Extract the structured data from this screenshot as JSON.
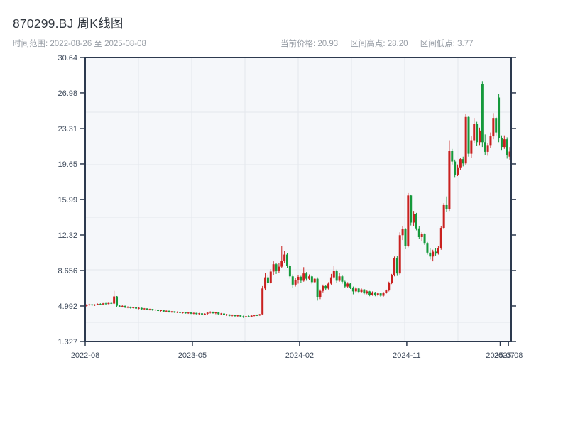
{
  "header": {
    "title": "870299.BJ 周K线图",
    "date_range_text": "时间范围: 2022-08-26 至 2025-08-08",
    "stats": [
      "当前价格: 20.93",
      "区间高点: 28.20",
      "区间低点: 3.77"
    ]
  },
  "chart_data": {
    "type": "candlestick",
    "title": "870299.BJ 周K线图",
    "interval": "weekly",
    "date_range": {
      "start": "2022-08-26",
      "end": "2025-08-08"
    },
    "current_price": 20.93,
    "period_high": 28.2,
    "period_low": 3.77,
    "up_color": "#c9211f",
    "down_color": "#15993b",
    "plot_bg": "#f5f7fa",
    "grid_color": "#e4e7ec",
    "border_color": "#2d3a4f",
    "y_axis": {
      "min": 1.327,
      "max": 30.64,
      "ticks": [
        {
          "label": "30.64",
          "value": 30.64
        },
        {
          "label": "26.98",
          "value": 26.98
        },
        {
          "label": "23.31",
          "value": 23.31
        },
        {
          "label": "19.65",
          "value": 19.65
        },
        {
          "label": "15.99",
          "value": 15.99
        },
        {
          "label": "12.32",
          "value": 12.32
        },
        {
          "label": "8.656",
          "value": 8.656
        },
        {
          "label": "4.992",
          "value": 4.992
        },
        {
          "label": "1.327",
          "value": 1.327
        }
      ]
    },
    "x_axis": {
      "tick_labels": [
        {
          "label": "2022-08",
          "week": 0
        },
        {
          "label": "2023-05",
          "week": 39
        },
        {
          "label": "2024-02",
          "week": 78
        },
        {
          "label": "2024-11",
          "week": 117
        },
        {
          "label": "2025-07",
          "week": 151
        },
        {
          "label": "2025-08",
          "week": 154
        }
      ]
    },
    "candles_format": [
      "open",
      "high",
      "low",
      "close"
    ],
    "candles": [
      [
        5.0,
        5.18,
        4.92,
        5.1
      ],
      [
        5.1,
        5.22,
        5.02,
        5.16
      ],
      [
        5.16,
        5.2,
        5.0,
        5.06
      ],
      [
        5.06,
        5.18,
        5.0,
        5.14
      ],
      [
        5.14,
        5.25,
        5.08,
        5.2
      ],
      [
        5.2,
        5.28,
        5.1,
        5.15
      ],
      [
        5.15,
        5.3,
        5.12,
        5.26
      ],
      [
        5.26,
        5.32,
        5.14,
        5.2
      ],
      [
        5.2,
        5.34,
        5.16,
        5.3
      ],
      [
        5.3,
        5.36,
        5.2,
        5.24
      ],
      [
        5.24,
        6.55,
        5.18,
        5.98
      ],
      [
        5.98,
        6.02,
        4.88,
        5.02
      ],
      [
        5.02,
        5.12,
        4.86,
        4.94
      ],
      [
        4.94,
        5.06,
        4.84,
        5.0
      ],
      [
        5.0,
        5.04,
        4.78,
        4.84
      ],
      [
        4.84,
        4.96,
        4.76,
        4.9
      ],
      [
        4.9,
        4.94,
        4.72,
        4.78
      ],
      [
        4.78,
        4.9,
        4.7,
        4.85
      ],
      [
        4.85,
        4.88,
        4.68,
        4.72
      ],
      [
        4.72,
        4.84,
        4.66,
        4.8
      ],
      [
        4.8,
        4.83,
        4.62,
        4.66
      ],
      [
        4.66,
        4.78,
        4.6,
        4.74
      ],
      [
        4.74,
        4.76,
        4.56,
        4.6
      ],
      [
        4.6,
        4.72,
        4.54,
        4.68
      ],
      [
        4.68,
        4.7,
        4.5,
        4.55
      ],
      [
        4.55,
        4.66,
        4.48,
        4.62
      ],
      [
        4.62,
        4.64,
        4.44,
        4.48
      ],
      [
        4.48,
        4.6,
        4.42,
        4.56
      ],
      [
        4.56,
        4.58,
        4.38,
        4.42
      ],
      [
        4.42,
        4.54,
        4.36,
        4.5
      ],
      [
        4.5,
        4.52,
        4.32,
        4.36
      ],
      [
        4.36,
        4.48,
        4.3,
        4.44
      ],
      [
        4.44,
        4.46,
        4.28,
        4.32
      ],
      [
        4.32,
        4.44,
        4.26,
        4.4
      ],
      [
        4.4,
        4.42,
        4.24,
        4.28
      ],
      [
        4.28,
        4.4,
        4.22,
        4.36
      ],
      [
        4.36,
        4.38,
        4.2,
        4.24
      ],
      [
        4.24,
        4.36,
        4.18,
        4.32
      ],
      [
        4.32,
        4.34,
        4.16,
        4.2
      ],
      [
        4.2,
        4.32,
        4.14,
        4.28
      ],
      [
        4.28,
        4.3,
        4.12,
        4.16
      ],
      [
        4.16,
        4.28,
        4.1,
        4.24
      ],
      [
        4.24,
        4.26,
        4.08,
        4.12
      ],
      [
        4.12,
        4.24,
        4.06,
        4.2
      ],
      [
        4.2,
        4.35,
        4.1,
        4.3
      ],
      [
        4.3,
        4.45,
        4.22,
        4.4
      ],
      [
        4.4,
        4.42,
        4.2,
        4.25
      ],
      [
        4.25,
        4.38,
        4.15,
        4.33
      ],
      [
        4.33,
        4.35,
        4.1,
        4.15
      ],
      [
        4.15,
        4.27,
        4.05,
        4.22
      ],
      [
        4.22,
        4.24,
        4.0,
        4.06
      ],
      [
        4.06,
        4.18,
        3.98,
        4.12
      ],
      [
        4.12,
        4.14,
        3.94,
        3.99
      ],
      [
        3.99,
        4.12,
        3.92,
        4.08
      ],
      [
        4.08,
        4.1,
        3.9,
        3.95
      ],
      [
        3.95,
        4.08,
        3.88,
        4.03
      ],
      [
        4.03,
        4.06,
        3.85,
        3.92
      ],
      [
        3.92,
        4.0,
        3.77,
        3.85
      ],
      [
        3.85,
        3.98,
        3.8,
        3.94
      ],
      [
        3.94,
        4.02,
        3.84,
        3.9
      ],
      [
        3.9,
        4.04,
        3.86,
        4.0
      ],
      [
        4.0,
        4.08,
        3.92,
        4.05
      ],
      [
        4.05,
        4.12,
        3.96,
        4.02
      ],
      [
        4.02,
        4.18,
        3.98,
        4.14
      ],
      [
        4.14,
        7.05,
        4.1,
        6.8
      ],
      [
        6.8,
        8.4,
        6.6,
        7.95
      ],
      [
        7.95,
        8.2,
        7.1,
        7.4
      ],
      [
        7.4,
        8.8,
        7.3,
        8.55
      ],
      [
        8.55,
        9.6,
        8.2,
        9.3
      ],
      [
        9.3,
        9.45,
        8.3,
        8.6
      ],
      [
        8.6,
        9.4,
        8.4,
        9.05
      ],
      [
        9.05,
        11.2,
        8.9,
        9.65
      ],
      [
        9.65,
        10.7,
        9.4,
        10.3
      ],
      [
        10.3,
        10.45,
        8.9,
        9.1
      ],
      [
        9.1,
        9.3,
        7.8,
        8.05
      ],
      [
        8.05,
        8.25,
        6.9,
        7.2
      ],
      [
        7.2,
        7.9,
        7.0,
        7.7
      ],
      [
        7.7,
        8.15,
        7.3,
        8.0
      ],
      [
        8.0,
        8.1,
        7.4,
        7.6
      ],
      [
        7.6,
        9.0,
        7.5,
        8.35
      ],
      [
        8.35,
        8.5,
        7.6,
        7.8
      ],
      [
        7.8,
        8.25,
        7.65,
        8.05
      ],
      [
        8.05,
        8.15,
        7.25,
        7.45
      ],
      [
        7.45,
        7.9,
        7.35,
        7.8
      ],
      [
        7.8,
        7.95,
        5.55,
        5.9
      ],
      [
        5.9,
        6.7,
        5.7,
        6.55
      ],
      [
        6.55,
        7.2,
        6.4,
        7.05
      ],
      [
        7.05,
        7.15,
        6.6,
        6.8
      ],
      [
        6.8,
        7.45,
        6.7,
        7.3
      ],
      [
        7.3,
        8.3,
        7.2,
        7.95
      ],
      [
        7.95,
        9.1,
        7.8,
        8.6
      ],
      [
        8.6,
        8.75,
        7.4,
        7.6
      ],
      [
        7.6,
        8.4,
        7.5,
        8.05
      ],
      [
        8.05,
        8.15,
        7.3,
        7.5
      ],
      [
        7.5,
        7.6,
        6.85,
        7.0
      ],
      [
        7.0,
        7.45,
        6.9,
        7.3
      ],
      [
        7.3,
        7.4,
        6.75,
        6.9
      ],
      [
        6.9,
        7.0,
        6.2,
        6.5
      ],
      [
        6.5,
        6.95,
        6.4,
        6.8
      ],
      [
        6.8,
        6.9,
        6.3,
        6.45
      ],
      [
        6.45,
        6.8,
        6.35,
        6.7
      ],
      [
        6.7,
        6.75,
        6.2,
        6.3
      ],
      [
        6.3,
        6.6,
        6.2,
        6.5
      ],
      [
        6.5,
        6.55,
        6.0,
        6.15
      ],
      [
        6.15,
        6.5,
        6.05,
        6.4
      ],
      [
        6.4,
        6.45,
        6.0,
        6.1
      ],
      [
        6.1,
        6.4,
        6.0,
        6.3
      ],
      [
        6.3,
        6.35,
        5.9,
        6.05
      ],
      [
        6.05,
        6.45,
        5.95,
        6.35
      ],
      [
        6.35,
        6.7,
        6.25,
        6.6
      ],
      [
        6.6,
        7.5,
        6.5,
        7.35
      ],
      [
        7.35,
        8.3,
        7.25,
        8.15
      ],
      [
        8.15,
        10.1,
        8.05,
        9.9
      ],
      [
        9.9,
        10.15,
        8.1,
        8.35
      ],
      [
        8.35,
        12.6,
        8.2,
        12.3
      ],
      [
        12.3,
        13.2,
        11.8,
        12.95
      ],
      [
        12.95,
        13.05,
        10.9,
        11.2
      ],
      [
        11.2,
        16.65,
        11.05,
        16.4
      ],
      [
        16.4,
        16.5,
        13.3,
        13.6
      ],
      [
        13.6,
        14.8,
        13.2,
        14.5
      ],
      [
        14.5,
        14.6,
        12.8,
        13.0
      ],
      [
        13.0,
        13.2,
        11.9,
        12.1
      ],
      [
        12.1,
        12.6,
        11.7,
        12.4
      ],
      [
        12.4,
        12.5,
        11.3,
        11.5
      ],
      [
        11.5,
        11.6,
        10.3,
        10.5
      ],
      [
        10.5,
        11.0,
        9.8,
        10.1
      ],
      [
        10.1,
        10.8,
        9.6,
        10.6
      ],
      [
        10.6,
        11.0,
        10.2,
        10.4
      ],
      [
        10.4,
        11.2,
        10.3,
        11.0
      ],
      [
        11.0,
        13.2,
        10.8,
        13.05
      ],
      [
        13.05,
        15.6,
        12.9,
        15.4
      ],
      [
        15.4,
        16.3,
        14.7,
        15.0
      ],
      [
        15.0,
        22.1,
        14.8,
        21.0
      ],
      [
        21.0,
        21.2,
        19.6,
        19.9
      ],
      [
        19.9,
        20.1,
        18.3,
        18.55
      ],
      [
        18.55,
        19.6,
        18.4,
        19.3
      ],
      [
        19.3,
        20.3,
        19.0,
        20.15
      ],
      [
        20.15,
        20.4,
        19.4,
        19.7
      ],
      [
        19.7,
        24.8,
        19.5,
        24.5
      ],
      [
        24.5,
        24.6,
        20.4,
        20.7
      ],
      [
        20.7,
        22.5,
        20.3,
        22.1
      ],
      [
        22.1,
        24.4,
        21.8,
        23.8
      ],
      [
        23.8,
        24.0,
        21.5,
        21.9
      ],
      [
        21.9,
        23.4,
        21.6,
        23.1
      ],
      [
        27.9,
        28.2,
        21.4,
        21.9
      ],
      [
        21.9,
        22.7,
        20.6,
        20.9
      ],
      [
        20.9,
        21.8,
        20.5,
        21.6
      ],
      [
        21.6,
        22.9,
        21.3,
        22.5
      ],
      [
        22.5,
        24.9,
        22.2,
        24.4
      ],
      [
        24.4,
        24.5,
        22.6,
        22.9
      ],
      [
        26.5,
        26.9,
        21.9,
        22.3
      ],
      [
        22.3,
        22.6,
        21.1,
        21.4
      ],
      [
        21.4,
        22.6,
        21.2,
        22.2
      ],
      [
        22.2,
        22.4,
        20.2,
        20.6
      ],
      [
        20.4,
        21.4,
        20.1,
        20.93
      ]
    ]
  }
}
